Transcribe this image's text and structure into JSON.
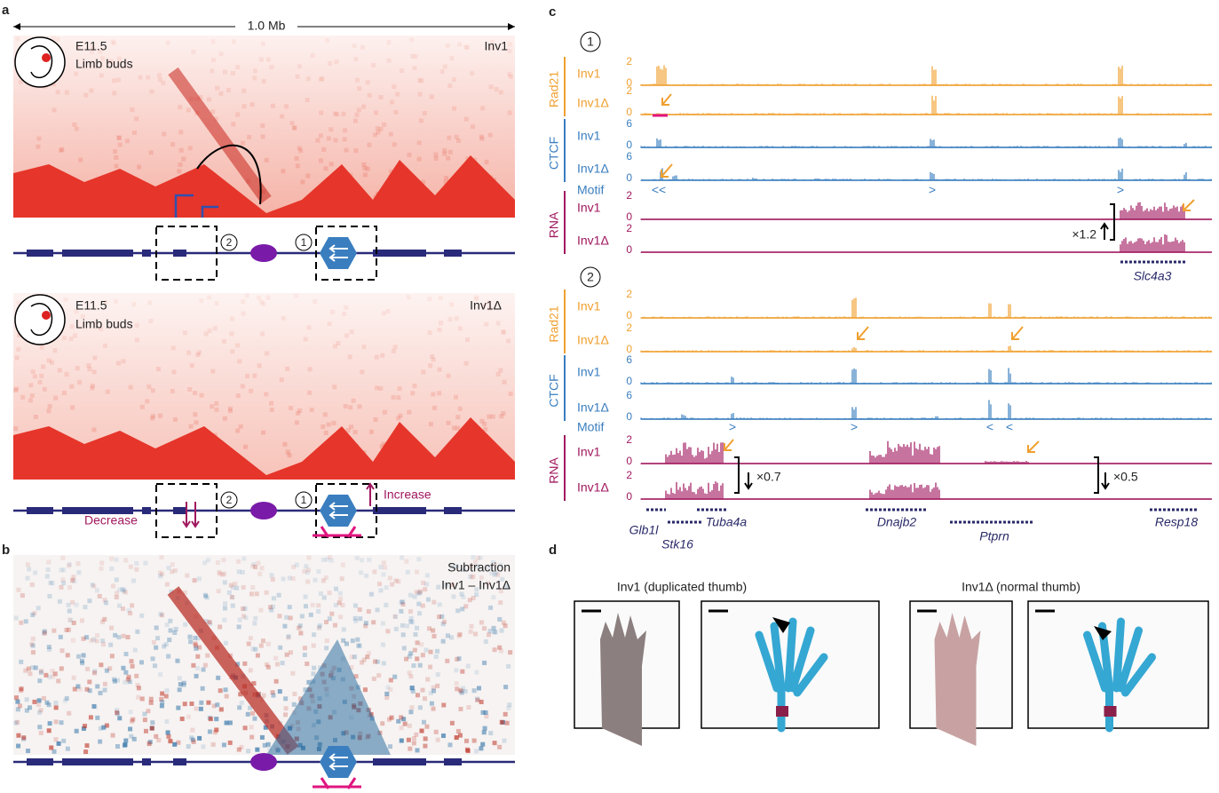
{
  "panels": {
    "a": {
      "label": "a",
      "scale": "1.0 Mb",
      "top": {
        "stage": "E11.5",
        "tissue": "Limb buds",
        "name": "Inv1"
      },
      "bottom": {
        "stage": "E11.5",
        "tissue": "Limb buds",
        "name": "Inv1Δ"
      },
      "marker1": "1",
      "marker2": "2",
      "decrease": "Decrease",
      "increase": "Increase"
    },
    "b": {
      "label": "b",
      "title": "Subtraction",
      "subtitle": "Inv1 – Inv1Δ"
    },
    "c": {
      "label": "c",
      "region1": {
        "marker": "1",
        "rows": [
          {
            "group": "Rad21",
            "name": "Inv1",
            "max": "2",
            "min": "0"
          },
          {
            "group": "Rad21",
            "name": "Inv1Δ",
            "max": "2",
            "min": "0"
          },
          {
            "group": "CTCF",
            "name": "Inv1",
            "max": "6",
            "min": "0"
          },
          {
            "group": "CTCF",
            "name": "Inv1Δ",
            "max": "6",
            "min": "0"
          },
          {
            "group": "RNA",
            "name": "Inv1",
            "max": "2",
            "min": "0"
          },
          {
            "group": "RNA",
            "name": "Inv1Δ",
            "max": "2",
            "min": "0"
          }
        ],
        "motif": "Motif",
        "motifs": [
          "<<",
          ">",
          ">"
        ],
        "fold": "×1.2",
        "genes": [
          "Slc4a3"
        ]
      },
      "region2": {
        "marker": "2",
        "rows": [
          {
            "group": "Rad21",
            "name": "Inv1",
            "max": "2",
            "min": "0"
          },
          {
            "group": "Rad21",
            "name": "Inv1Δ",
            "max": "2",
            "min": "0"
          },
          {
            "group": "CTCF",
            "name": "Inv1",
            "max": "6",
            "min": "0"
          },
          {
            "group": "CTCF",
            "name": "Inv1Δ",
            "max": "6",
            "min": "0"
          },
          {
            "group": "RNA",
            "name": "Inv1",
            "max": "2",
            "min": "0"
          },
          {
            "group": "RNA",
            "name": "Inv1Δ",
            "max": "2",
            "min": "0"
          }
        ],
        "motif": "Motif",
        "motifs": [
          ">",
          ">",
          "<",
          "<"
        ],
        "folds": [
          "×0.7",
          "×0.5"
        ],
        "genes": [
          "Glb1l",
          "Stk16",
          "Tuba4a",
          "Dnajb2",
          "Ptprn",
          "Resp18"
        ]
      }
    },
    "d": {
      "label": "d",
      "left": "Inv1 (duplicated thumb)",
      "right": "Inv1Δ (normal thumb)"
    }
  }
}
